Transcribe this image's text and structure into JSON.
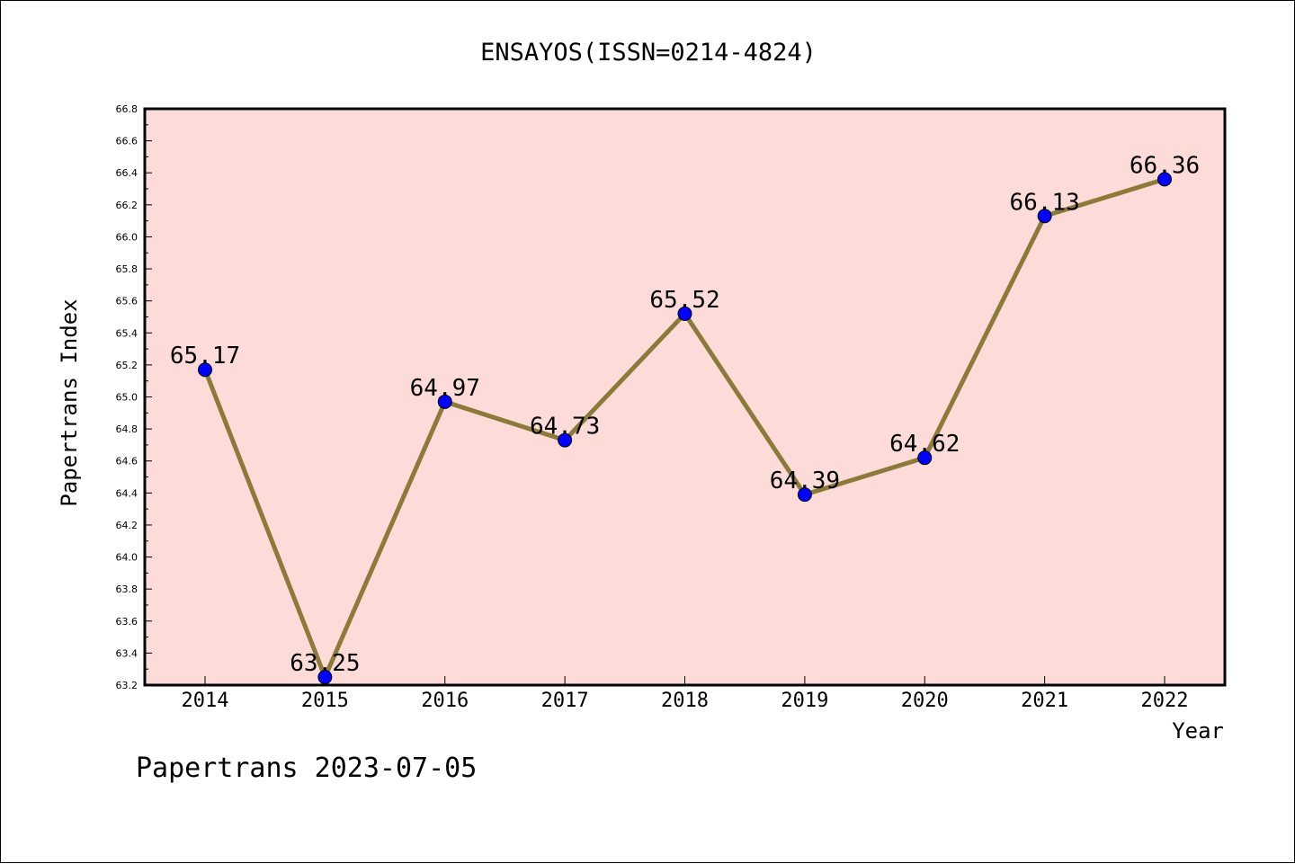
{
  "chart_data": {
    "type": "line",
    "title": "ENSAYOS(ISSN=0214-4824)",
    "xlabel": "Year",
    "ylabel": "Papertrans Index",
    "x": [
      "2014",
      "2015",
      "2016",
      "2017",
      "2018",
      "2019",
      "2020",
      "2021",
      "2022"
    ],
    "series": [
      {
        "values": [
          65.17,
          63.25,
          64.97,
          64.73,
          65.52,
          64.39,
          64.62,
          66.13,
          66.36
        ],
        "labels": [
          "65.17",
          "63.25",
          "64.97",
          "64.73",
          "65.52",
          "64.39",
          "64.62",
          "66.13",
          "66.36"
        ]
      }
    ],
    "ylim": [
      63.2,
      66.8
    ],
    "yticks": [
      "63.2",
      "63.4",
      "63.6",
      "63.8",
      "64.0",
      "64.2",
      "64.4",
      "64.6",
      "64.8",
      "65.0",
      "65.2",
      "65.4",
      "65.6",
      "65.8",
      "66.0",
      "66.2",
      "66.4",
      "66.6",
      "66.8"
    ],
    "grid": false,
    "legend": "none",
    "colors": {
      "plot_background": "#fddbd8",
      "line": "#8b7a3a",
      "marker": "#0000ff"
    }
  },
  "footer": {
    "source_text": "Papertrans 2023-07-05"
  }
}
